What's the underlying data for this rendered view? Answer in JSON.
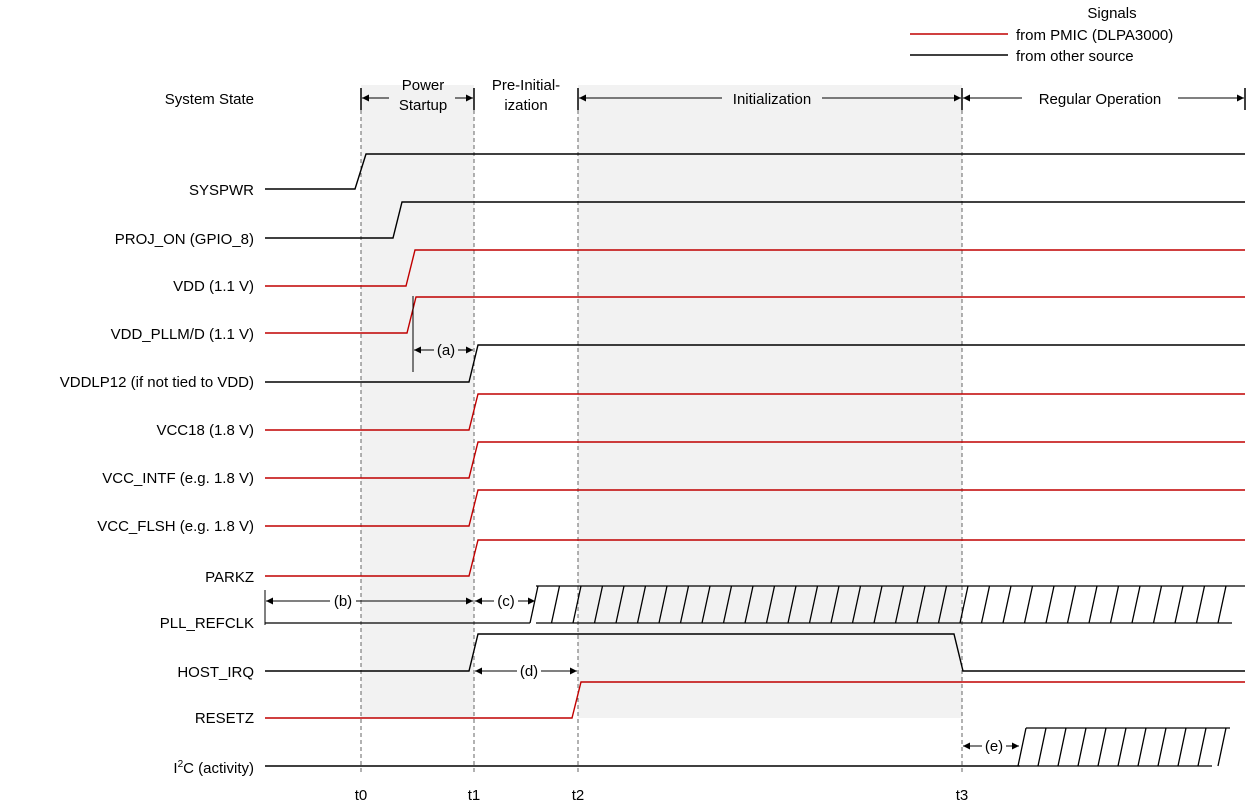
{
  "legend": {
    "title": "Signals",
    "items": [
      {
        "label": "from PMIC (DLPA3000)",
        "color": "#c00000"
      },
      {
        "label": "from other source",
        "color": "#000000"
      }
    ]
  },
  "system_state": {
    "label": "System State",
    "phases": [
      {
        "key": "power",
        "lines": [
          "Power",
          "Startup"
        ]
      },
      {
        "key": "preinit",
        "lines": [
          "Pre-Initial-",
          "ization"
        ]
      },
      {
        "key": "init",
        "lines": [
          "Initialization"
        ]
      },
      {
        "key": "regular",
        "lines": [
          "Regular Operation"
        ]
      }
    ]
  },
  "signals": [
    {
      "name": "SYSPWR",
      "source": "other"
    },
    {
      "name": "PROJ_ON (GPIO_8)",
      "source": "other"
    },
    {
      "name": "VDD (1.1 V)",
      "source": "pmic"
    },
    {
      "name": "VDD_PLLM/D (1.1 V)",
      "source": "pmic"
    },
    {
      "name": "VDDLP12 (if not tied to VDD)",
      "source": "other"
    },
    {
      "name": "VCC18 (1.8 V)",
      "source": "pmic"
    },
    {
      "name": "VCC_INTF (e.g. 1.8 V)",
      "source": "pmic"
    },
    {
      "name": "VCC_FLSH (e.g. 1.8 V)",
      "source": "pmic"
    },
    {
      "name": "PARKZ",
      "source": "pmic"
    },
    {
      "name": "PLL_REFCLK",
      "source": "other"
    },
    {
      "name": "HOST_IRQ",
      "source": "other"
    },
    {
      "name": "RESETZ",
      "source": "pmic"
    },
    {
      "name": "I2C (activity)",
      "display_prefix": "I",
      "display_sup": "2",
      "display_suffix": "C (activity)",
      "source": "other"
    }
  ],
  "time_markers": [
    "t0",
    "t1",
    "t2",
    "t3"
  ],
  "intervals": [
    {
      "label": "(a)"
    },
    {
      "label": "(b)"
    },
    {
      "label": "(c)"
    },
    {
      "label": "(d)"
    },
    {
      "label": "(e)"
    }
  ],
  "colors": {
    "pmic": "#c00000",
    "other": "#000000",
    "shade": "#f2f2f2"
  }
}
